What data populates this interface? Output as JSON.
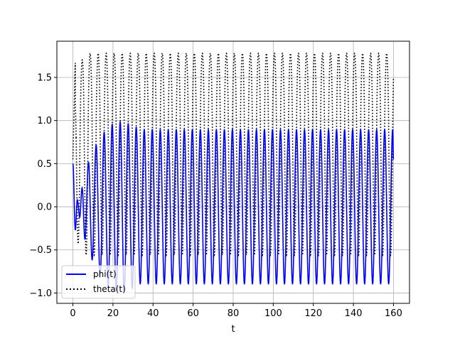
{
  "chart_data": {
    "type": "line",
    "title": "",
    "xlabel": "t",
    "ylabel": "",
    "xlim": [
      -8,
      168
    ],
    "ylim": [
      -1.12,
      1.92
    ],
    "xticks": [
      0,
      20,
      40,
      60,
      80,
      100,
      120,
      140,
      160
    ],
    "xtick_labels": [
      "0",
      "20",
      "40",
      "60",
      "80",
      "100",
      "120",
      "140",
      "160"
    ],
    "yticks": [
      -1.0,
      -0.5,
      0.0,
      0.5,
      1.0,
      1.5
    ],
    "ytick_labels": [
      "−1.0",
      "−0.5",
      "0.0",
      "0.5",
      "1.0",
      "1.5"
    ],
    "grid": true,
    "legend_position": "lower-left",
    "x_range": [
      0,
      160
    ],
    "oscillation_period": 4.0,
    "series": [
      {
        "name": "phi(t)",
        "color": "#0000ff",
        "style": "solid",
        "start_value": 0.5,
        "steady_max": 0.9,
        "steady_min": -0.9,
        "transient_peaks": [
          [
            1.2,
            -0.27
          ],
          [
            2.2,
            0.08
          ],
          [
            3.4,
            -0.12
          ],
          [
            4.6,
            0.22
          ],
          [
            6.0,
            -0.38
          ],
          [
            7.8,
            0.52
          ],
          [
            9.6,
            -0.62
          ],
          [
            11.6,
            0.72
          ],
          [
            13.6,
            -0.82
          ],
          [
            15.6,
            0.87
          ],
          [
            17.6,
            -0.93
          ],
          [
            19.6,
            0.96
          ],
          [
            21.6,
            -0.98
          ],
          [
            23.6,
            0.99
          ],
          [
            25.6,
            -0.99
          ],
          [
            27.6,
            0.97
          ],
          [
            29.6,
            -0.95
          ],
          [
            31.6,
            0.93
          ]
        ]
      },
      {
        "name": "theta(t)",
        "color": "#000000",
        "style": "dotted",
        "start_value": 0.55,
        "steady_max": 1.78,
        "steady_min": -0.56,
        "upper_floor": 0.88
      }
    ]
  }
}
